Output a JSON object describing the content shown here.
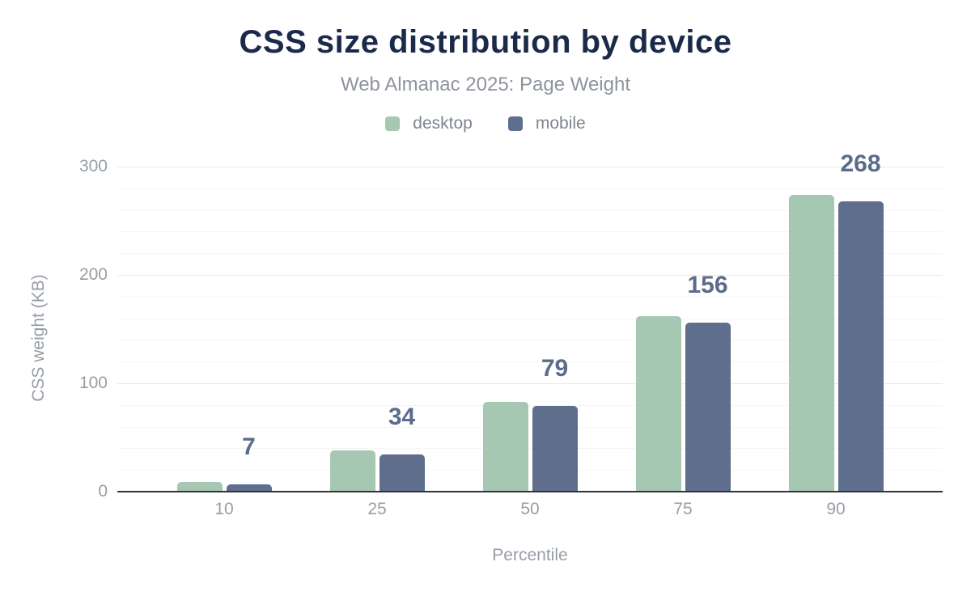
{
  "header": {
    "title": "CSS size distribution by device",
    "subtitle": "Web Almanac 2025: Page Weight"
  },
  "chart_data": {
    "type": "bar",
    "title": "CSS size distribution by device",
    "subtitle": "Web Almanac 2025: Page Weight",
    "categories": [
      "10",
      "25",
      "50",
      "75",
      "90"
    ],
    "series": [
      {
        "name": "desktop",
        "color": "#a6c8b3",
        "values": [
          9,
          38,
          83,
          162,
          274
        ]
      },
      {
        "name": "mobile",
        "color": "#5e6e8c",
        "values": [
          7,
          34,
          79,
          156,
          268
        ]
      }
    ],
    "data_labels": {
      "series": "mobile",
      "values": [
        "7",
        "34",
        "79",
        "156",
        "268"
      ],
      "color": "#5c6c8b"
    },
    "xlabel": "Percentile",
    "ylabel": "CSS weight (KB)",
    "yticks": [
      0,
      100,
      200,
      300
    ],
    "ylim": [
      0,
      312
    ],
    "grid": {
      "minor_step": 20,
      "major_step": 100,
      "minor_color": "#f5f5f7",
      "major_color": "#e8e8ec"
    },
    "legend_position": "top",
    "axis_line_color": "#343438",
    "title_color": "#1b2a4a",
    "subtitle_color": "#8d939f",
    "tick_color": "#989ea7"
  }
}
